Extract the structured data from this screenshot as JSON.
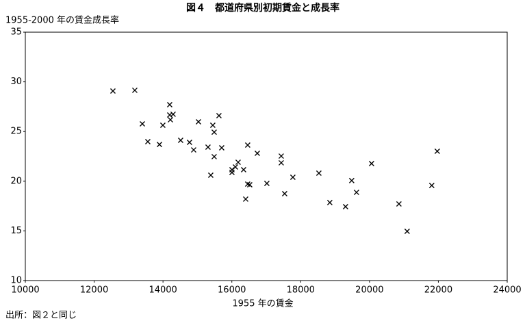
{
  "chart_data": {
    "type": "scatter",
    "title": "図４　都道府県別初期賃金と成長率",
    "y_label": "1955-2000 年の賃金成長率",
    "x_label": "1955 年の賃金",
    "source": "出所：図２と同じ",
    "color": "#000000",
    "x": [
      12545,
      13181,
      13400,
      13559,
      13897,
      13996,
      14195,
      14195,
      14215,
      14294,
      14513,
      14771,
      14891,
      15030,
      15308,
      15388,
      15447,
      15487,
      15487,
      15626,
      15706,
      16004,
      16004,
      16103,
      16183,
      16342,
      16402,
      16461,
      16461,
      16521,
      16740,
      17018,
      17435,
      17435,
      17535,
      17773,
      18529,
      18847,
      19304,
      19483,
      19622,
      20060,
      20855,
      21093,
      21809,
      21968
    ],
    "values": [
      29.08,
      29.15,
      25.77,
      23.98,
      23.7,
      25.63,
      27.7,
      26.67,
      26.18,
      26.74,
      24.12,
      23.91,
      23.15,
      25.98,
      23.43,
      20.61,
      25.63,
      24.94,
      22.47,
      26.6,
      23.36,
      21.16,
      20.88,
      21.43,
      21.91,
      21.16,
      18.2,
      23.64,
      19.71,
      19.64,
      22.81,
      19.78,
      22.53,
      21.85,
      18.75,
      20.4,
      20.81,
      17.85,
      17.44,
      20.06,
      18.88,
      21.78,
      17.71,
      14.96,
      19.57,
      23.02
    ],
    "xlim": [
      10000,
      24000
    ],
    "xticks": [
      10000,
      12000,
      14000,
      16000,
      18000,
      20000,
      22000,
      24000
    ],
    "ylim": [
      10,
      35
    ],
    "yticks": [
      10,
      15,
      20,
      25,
      30,
      35
    ]
  }
}
